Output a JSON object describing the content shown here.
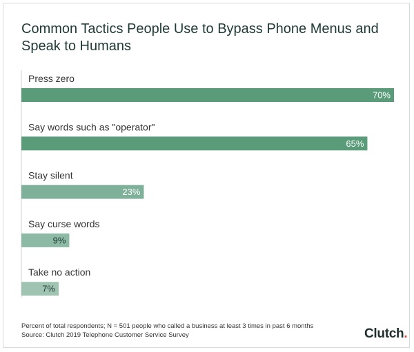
{
  "title": "Common Tactics People Use to Bypass Phone Menus and Speak to Humans",
  "footnote": "Percent of total respondents; N = 501 people who called a business at least 3 times in past 6 months",
  "source": "Source: Clutch 2019 Telephone Customer Service Survey",
  "logo": {
    "text": "Clutch",
    "accent_color": "#e1433b"
  },
  "chart_data": {
    "type": "bar",
    "orientation": "horizontal",
    "categories": [
      "Press zero",
      "Say words such as \"operator\"",
      "Stay silent",
      "Say curse words",
      "Take no action"
    ],
    "values": [
      70,
      65,
      23,
      9,
      7
    ],
    "value_labels": [
      "70%",
      "65%",
      "23%",
      "9%",
      "7%"
    ],
    "bar_colors": [
      "#5a9b7a",
      "#5a9b7a",
      "#7fb09a",
      "#8dbaa5",
      "#9fc4b2"
    ],
    "label_colors": [
      "#ffffff",
      "#ffffff",
      "#ffffff",
      "#1f3a36",
      "#1f3a36"
    ],
    "xlim": [
      0,
      70
    ],
    "grid": false,
    "legend": "none"
  }
}
